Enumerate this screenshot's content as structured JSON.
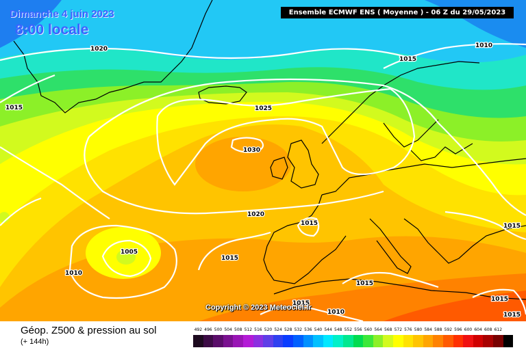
{
  "title": {
    "date": "Dimanche 4 juin 2023",
    "time": "8:00 locale"
  },
  "header": "Ensemble ECMWF ENS  ( Moyenne )  -  06 Z du 29/05/2023",
  "copyright": "Copyright © 2023 Meteociel.fr",
  "legend": {
    "title": "Géop. Z500 & pression au sol",
    "subtitle": "(+ 144h)",
    "scale": [
      {
        "value": "492",
        "color": "#1d0a1f"
      },
      {
        "value": "496",
        "color": "#3c0b45"
      },
      {
        "value": "500",
        "color": "#5a0d6a"
      },
      {
        "value": "504",
        "color": "#7a1190"
      },
      {
        "value": "508",
        "color": "#9915b5"
      },
      {
        "value": "512",
        "color": "#b31bd6"
      },
      {
        "value": "516",
        "color": "#8c2fe0"
      },
      {
        "value": "520",
        "color": "#5f3ee7"
      },
      {
        "value": "524",
        "color": "#2f40f0"
      },
      {
        "value": "528",
        "color": "#0a3cff"
      },
      {
        "value": "532",
        "color": "#0060ff"
      },
      {
        "value": "536",
        "color": "#0090ff"
      },
      {
        "value": "540",
        "color": "#00c0ff"
      },
      {
        "value": "544",
        "color": "#00e8ff"
      },
      {
        "value": "548",
        "color": "#00f0c8"
      },
      {
        "value": "552",
        "color": "#00e890"
      },
      {
        "value": "556",
        "color": "#00dc50"
      },
      {
        "value": "560",
        "color": "#3ce83a"
      },
      {
        "value": "564",
        "color": "#8cf028"
      },
      {
        "value": "568",
        "color": "#d2fa1e"
      },
      {
        "value": "572",
        "color": "#ffff00"
      },
      {
        "value": "576",
        "color": "#ffe200"
      },
      {
        "value": "580",
        "color": "#ffc400"
      },
      {
        "value": "584",
        "color": "#ffa500"
      },
      {
        "value": "588",
        "color": "#ff8200"
      },
      {
        "value": "592",
        "color": "#ff5a00"
      },
      {
        "value": "596",
        "color": "#ff3000"
      },
      {
        "value": "600",
        "color": "#f01010"
      },
      {
        "value": "604",
        "color": "#d00000"
      },
      {
        "value": "608",
        "color": "#a80000"
      },
      {
        "value": "612",
        "color": "#780000"
      },
      {
        "value": "",
        "color": "#000000"
      }
    ]
  },
  "isobar_labels": [
    {
      "text": "1020",
      "name": "isobar-label-1020-north"
    },
    {
      "text": "1015",
      "name": "isobar-label-1015-greenland"
    },
    {
      "text": "1015",
      "name": "isobar-label-1015-norway"
    },
    {
      "text": "1010",
      "name": "isobar-label-1010-barents"
    },
    {
      "text": "1025",
      "name": "isobar-label-1025"
    },
    {
      "text": "1030",
      "name": "isobar-label-1030-high"
    },
    {
      "text": "1020",
      "name": "isobar-label-1020-atlantic"
    },
    {
      "text": "1015",
      "name": "isobar-label-1015-france"
    },
    {
      "text": "1005",
      "name": "isobar-label-1005-low"
    },
    {
      "text": "1010",
      "name": "isobar-label-1010-azores"
    },
    {
      "text": "1015",
      "name": "isobar-label-1015-iberia"
    },
    {
      "text": "1015",
      "name": "isobar-label-1015-med"
    },
    {
      "text": "1015",
      "name": "isobar-label-1015-africa"
    },
    {
      "text": "1010",
      "name": "isobar-label-1010-africa"
    },
    {
      "text": "1015",
      "name": "isobar-label-1015-black-sea"
    },
    {
      "text": "1015",
      "name": "isobar-label-1015-east-med"
    },
    {
      "text": "1015",
      "name": "isobar-label-1015-levant"
    }
  ],
  "colors": {
    "isobar": "#ffffff",
    "coastline": "#000000"
  }
}
